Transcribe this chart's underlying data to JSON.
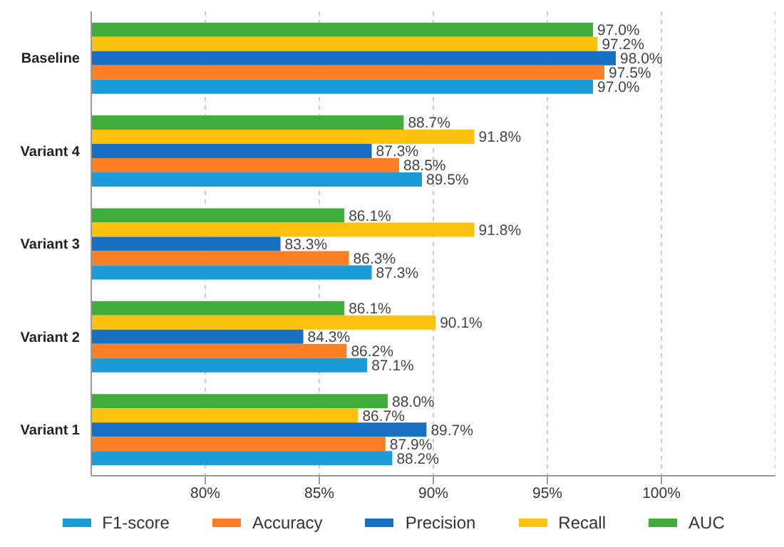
{
  "chart_data": {
    "type": "bar",
    "orientation": "horizontal",
    "categories": [
      "Baseline",
      "Variant 4",
      "Variant 3",
      "Variant 2",
      "Variant 1"
    ],
    "series": [
      {
        "name": "F1-score",
        "color": "#1b9bd7",
        "values": [
          97.0,
          89.5,
          87.3,
          87.1,
          88.2
        ],
        "value_labels": [
          "97.0%",
          "89.5%",
          "87.3%",
          "87.1%",
          "88.2%"
        ]
      },
      {
        "name": "Accuracy",
        "color": "#fd7e23",
        "values": [
          97.5,
          88.5,
          86.3,
          86.2,
          87.9
        ],
        "value_labels": [
          "97.5%",
          "88.5%",
          "86.3%",
          "86.2%",
          "87.9%"
        ]
      },
      {
        "name": "Precision",
        "color": "#1870c5",
        "values": [
          98.0,
          87.3,
          83.3,
          84.3,
          89.7
        ],
        "value_labels": [
          "98.0%",
          "87.3%",
          "83.3%",
          "84.3%",
          "89.7%"
        ]
      },
      {
        "name": "Recall",
        "color": "#fec10d",
        "values": [
          97.2,
          91.8,
          91.8,
          90.1,
          86.7
        ],
        "value_labels": [
          "97.2%",
          "91.8%",
          "91.8%",
          "90.1%",
          "86.7%"
        ]
      },
      {
        "name": "AUC",
        "color": "#40ad3a",
        "values": [
          97.0,
          88.7,
          86.1,
          86.1,
          88.0
        ],
        "value_labels": [
          "97.0%",
          "88.7%",
          "86.1%",
          "86.1%",
          "88.0%"
        ]
      }
    ],
    "xlim": [
      75,
      105
    ],
    "xticks": [
      {
        "value": 80,
        "label": "80%"
      },
      {
        "value": 85,
        "label": "85%"
      },
      {
        "value": 90,
        "label": "90%"
      },
      {
        "value": 95,
        "label": "95%"
      },
      {
        "value": 100,
        "label": "100%"
      }
    ],
    "grid": "x",
    "legend": "bottom"
  }
}
